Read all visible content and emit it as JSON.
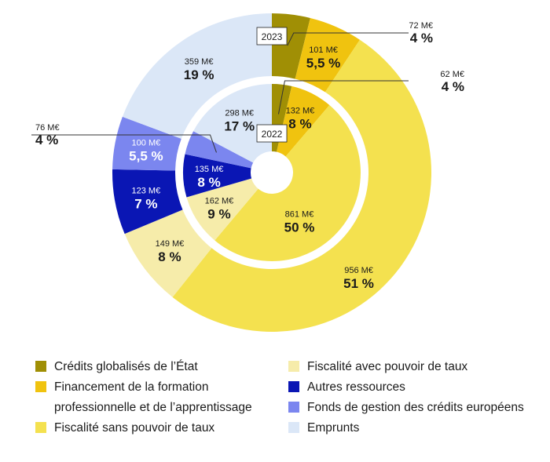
{
  "chart_data": {
    "type": "pie",
    "variant": "double-donut",
    "colors": {
      "credits_globalises": "#a08f05",
      "formation_pro": "#f0c30f",
      "fiscalite_sans_pouvoir": "#f4e14f",
      "fiscalite_avec_pouvoir": "#f6ecaa",
      "autres_ressources": "#0a16b4",
      "fonds_europeens": "#7b86ef",
      "emprunts": "#dbe7f7"
    },
    "categories": [
      "Crédits globalisés de l’État",
      "Financement de la formation professionnelle et de l’apprentissage",
      "Fiscalité sans pouvoir de taux",
      "Fiscalité avec pouvoir de taux",
      "Autres ressources",
      "Fonds de gestion des crédits européens",
      "Emprunts"
    ],
    "series": [
      {
        "name": "2023",
        "ring": "outer",
        "slices": [
          {
            "key": "credits_globalises",
            "amount": "72 M€",
            "pct": "4 %",
            "value": 72
          },
          {
            "key": "formation_pro",
            "amount": "101 M€",
            "pct": "5,5 %",
            "value": 101
          },
          {
            "key": "fiscalite_sans_pouvoir",
            "amount": "956 M€",
            "pct": "51 %",
            "value": 956
          },
          {
            "key": "fiscalite_avec_pouvoir",
            "amount": "149 M€",
            "pct": "8 %",
            "value": 149
          },
          {
            "key": "autres_ressources",
            "amount": "123 M€",
            "pct": "7 %",
            "value": 123
          },
          {
            "key": "fonds_europeens",
            "amount": "100 M€",
            "pct": "5,5 %",
            "value": 100
          },
          {
            "key": "emprunts",
            "amount": "359 M€",
            "pct": "19 %",
            "value": 359
          }
        ]
      },
      {
        "name": "2022",
        "ring": "inner",
        "slices": [
          {
            "key": "credits_globalises",
            "amount": "62 M€",
            "pct": "4 %",
            "value": 62
          },
          {
            "key": "formation_pro",
            "amount": "132 M€",
            "pct": "8 %",
            "value": 132
          },
          {
            "key": "fiscalite_sans_pouvoir",
            "amount": "861 M€",
            "pct": "50 %",
            "value": 861
          },
          {
            "key": "fiscalite_avec_pouvoir",
            "amount": "162 M€",
            "pct": "9 %",
            "value": 162
          },
          {
            "key": "autres_ressources",
            "amount": "135 M€",
            "pct": "8 %",
            "value": 135
          },
          {
            "key": "fonds_europeens",
            "amount": "76 M€",
            "pct": "4 %",
            "value": 76
          },
          {
            "key": "emprunts",
            "amount": "298 M€",
            "pct": "17 %",
            "value": 298
          }
        ]
      }
    ],
    "legend": {
      "placement": "bottom",
      "left": [
        {
          "key": "credits_globalises",
          "label": "Crédits globalisés de l’État"
        },
        {
          "key": "formation_pro",
          "label": "Financement de la formation professionnelle et de l’apprentissage"
        },
        {
          "key": "fiscalite_sans_pouvoir",
          "label": "Fiscalité sans pouvoir de taux"
        }
      ],
      "right": [
        {
          "key": "fiscalite_avec_pouvoir",
          "label": "Fiscalité avec pouvoir de taux"
        },
        {
          "key": "autres_ressources",
          "label": "Autres ressources"
        },
        {
          "key": "fonds_europeens",
          "label": "Fonds de gestion des crédits européens"
        },
        {
          "key": "emprunts",
          "label": "Emprunts"
        }
      ]
    }
  }
}
